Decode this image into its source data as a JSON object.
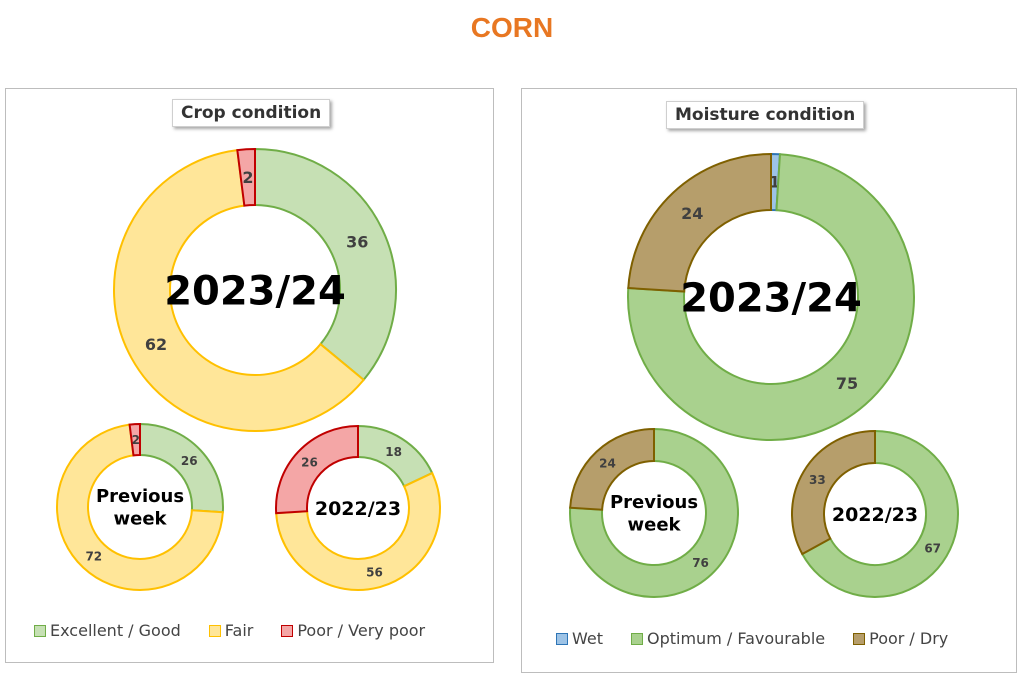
{
  "page": {
    "title": "CORN"
  },
  "chart_data": [
    {
      "type": "donut",
      "title": "Crop condition",
      "legend": {
        "position": "bottom"
      },
      "categories": [
        "Excellent / Good",
        "Fair",
        "Poor / Very poor"
      ],
      "colors": {
        "fill": [
          "#c6e0b4",
          "#ffe699",
          "#f4a6a6"
        ],
        "stroke": [
          "#70ad47",
          "#ffc000",
          "#c00000"
        ]
      },
      "series": [
        {
          "name": "2023/24",
          "values": [
            36,
            62,
            2
          ]
        },
        {
          "name": "Previous week",
          "values": [
            26,
            72,
            2
          ]
        },
        {
          "name": "2022/23",
          "values": [
            18,
            56,
            26
          ]
        }
      ]
    },
    {
      "type": "donut",
      "title": "Moisture condition",
      "legend": {
        "position": "bottom"
      },
      "categories": [
        "Wet",
        "Optimum / Favourable",
        "Poor / Dry"
      ],
      "colors": {
        "fill": [
          "#9dc3e6",
          "#a9d18e",
          "#b69e6b"
        ],
        "stroke": [
          "#2e75b6",
          "#70ad47",
          "#7f6000"
        ]
      },
      "series": [
        {
          "name": "2023/24",
          "values": [
            1,
            75,
            24
          ]
        },
        {
          "name": "Previous week",
          "values": [
            0,
            76,
            24
          ]
        },
        {
          "name": "2022/23",
          "values": [
            0,
            67,
            33
          ]
        }
      ]
    }
  ]
}
